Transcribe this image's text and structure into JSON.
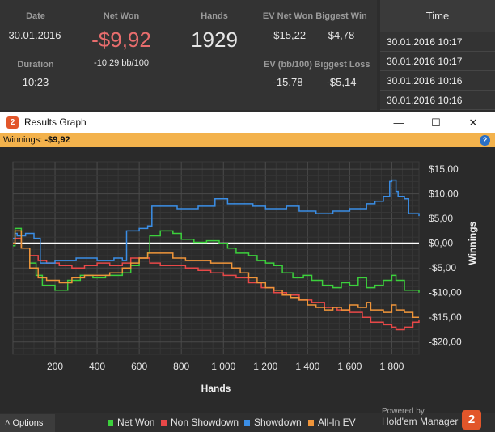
{
  "stats": {
    "date_label": "Date",
    "date_value": "30.01.2016",
    "duration_label": "Duration",
    "duration_value": "10:23",
    "netwon_label": "Net Won",
    "netwon_value": "-$9,92",
    "netwon_bb": "-10,29 bb/100",
    "hands_label": "Hands",
    "hands_value": "1929",
    "ev_net_won_label": "EV Net Won",
    "ev_net_won_value": "-$15,22",
    "biggest_win_label": "Biggest Win",
    "biggest_win_value": "$4,78",
    "ev_bb_label": "EV (bb/100)",
    "ev_bb_value": "-15,78",
    "biggest_loss_label": "Biggest Loss",
    "biggest_loss_value": "-$5,14"
  },
  "time_panel": {
    "header": "Time",
    "rows": [
      "30.01.2016 10:17",
      "30.01.2016 10:17",
      "30.01.2016 10:16",
      "30.01.2016 10:16"
    ]
  },
  "window": {
    "title": "Results Graph",
    "app_icon": "2",
    "minimize_icon": "—",
    "maximize_icon": "☐",
    "close_icon": "✕",
    "winnings_label": "Winnings:",
    "winnings_value": "-$9,92",
    "help_icon": "?"
  },
  "footer": {
    "options_label": "Options",
    "options_icon": "˄",
    "powered_by": "Powered by",
    "brand": "Hold'em Manager",
    "brand_logo": "2"
  },
  "chart_data": {
    "type": "line",
    "xlabel": "Hands",
    "ylabel": "Winnings",
    "xlim": [
      0,
      1929
    ],
    "ylim": [
      -22.5,
      16.5
    ],
    "xticks": [
      200,
      400,
      600,
      800,
      1000,
      1200,
      1400,
      1600,
      1800
    ],
    "xtick_labels": [
      "200",
      "400",
      "600",
      "800",
      "1 000",
      "1 200",
      "1 400",
      "1 600",
      "1 800"
    ],
    "yticks": [
      15,
      10,
      5,
      0,
      -5,
      -10,
      -15,
      -20
    ],
    "ytick_labels": [
      "$15,00",
      "$10,00",
      "$5,00",
      "$0,00",
      "-$5,00",
      "-$10,00",
      "-$15,00",
      "-$20,00"
    ],
    "grid": true,
    "legend_position": "bottom",
    "series": [
      {
        "name": "Net Won",
        "color": "#3cd03c",
        "x": [
          0,
          10,
          40,
          80,
          110,
          140,
          200,
          260,
          320,
          380,
          440,
          520,
          560,
          600,
          640,
          650,
          700,
          760,
          800,
          860,
          920,
          980,
          1020,
          1060,
          1120,
          1160,
          1200,
          1240,
          1280,
          1330,
          1380,
          1420,
          1470,
          1520,
          1560,
          1600,
          1640,
          1680,
          1720,
          1760,
          1800,
          1820,
          1860,
          1929
        ],
        "y": [
          -0.5,
          3.0,
          -1.0,
          -4.0,
          -6.5,
          -8.5,
          -9.5,
          -7.5,
          -6.5,
          -7.0,
          -6.5,
          -6.0,
          -4.5,
          -3.0,
          -2.0,
          1.5,
          2.5,
          2.0,
          0.8,
          0.2,
          0.5,
          0.0,
          -1.0,
          -2.0,
          -2.5,
          -3.5,
          -4.0,
          -4.5,
          -6.0,
          -7.0,
          -6.5,
          -7.5,
          -8.5,
          -9.0,
          -8.0,
          -8.5,
          -7.0,
          -9.0,
          -8.5,
          -7.5,
          -6.5,
          -7.5,
          -9.5,
          -10.0
        ]
      },
      {
        "name": "Non Showdown",
        "color": "#e84848",
        "x": [
          0,
          10,
          40,
          80,
          120,
          160,
          220,
          280,
          340,
          400,
          460,
          520,
          560,
          600,
          650,
          700,
          760,
          820,
          880,
          940,
          1000,
          1060,
          1120,
          1180,
          1240,
          1300,
          1360,
          1420,
          1480,
          1540,
          1600,
          1660,
          1700,
          1760,
          1800,
          1820,
          1860,
          1900,
          1929
        ],
        "y": [
          0.0,
          1.0,
          -1.0,
          -2.5,
          -3.5,
          -4.0,
          -4.5,
          -5.0,
          -4.5,
          -4.0,
          -4.5,
          -4.0,
          -3.0,
          -3.0,
          -4.0,
          -4.5,
          -4.5,
          -5.0,
          -5.5,
          -6.0,
          -6.5,
          -7.0,
          -8.0,
          -9.0,
          -10.0,
          -10.5,
          -11.5,
          -12.0,
          -13.0,
          -13.5,
          -14.0,
          -15.0,
          -16.0,
          -16.5,
          -17.0,
          -17.5,
          -17.0,
          -16.0,
          -15.5
        ]
      },
      {
        "name": "Showdown",
        "color": "#3b8ee6",
        "x": [
          0,
          10,
          20,
          60,
          100,
          130,
          200,
          300,
          400,
          480,
          520,
          540,
          560,
          600,
          640,
          660,
          700,
          780,
          880,
          960,
          1020,
          1080,
          1140,
          1200,
          1260,
          1300,
          1360,
          1400,
          1440,
          1480,
          1520,
          1560,
          1600,
          1640,
          1680,
          1720,
          1760,
          1790,
          1800,
          1820,
          1830,
          1860,
          1880,
          1900,
          1929
        ],
        "y": [
          1.0,
          2.0,
          1.5,
          2.0,
          1.0,
          -4.0,
          -3.5,
          -3.0,
          -3.5,
          -3.0,
          -3.5,
          2.5,
          2.5,
          3.0,
          3.5,
          7.5,
          7.5,
          7.0,
          7.5,
          9.0,
          8.0,
          8.0,
          7.5,
          7.0,
          7.0,
          7.5,
          6.5,
          6.5,
          6.0,
          6.0,
          6.5,
          6.5,
          7.0,
          7.0,
          8.0,
          8.5,
          9.5,
          12.5,
          12.8,
          10.5,
          9.5,
          9.0,
          6.0,
          6.0,
          5.5
        ]
      },
      {
        "name": "All-In EV",
        "color": "#f0953a",
        "x": [
          0,
          10,
          40,
          80,
          120,
          160,
          220,
          280,
          340,
          400,
          460,
          520,
          560,
          600,
          640,
          700,
          760,
          820,
          880,
          940,
          1000,
          1040,
          1080,
          1120,
          1160,
          1200,
          1240,
          1280,
          1320,
          1360,
          1400,
          1440,
          1480,
          1520,
          1560,
          1600,
          1640,
          1680,
          1700,
          1760,
          1800,
          1820,
          1860,
          1900,
          1929
        ],
        "y": [
          0.0,
          2.5,
          -1.0,
          -5.0,
          -7.0,
          -7.5,
          -8.0,
          -7.0,
          -6.5,
          -6.5,
          -6.0,
          -5.0,
          -4.0,
          -3.0,
          -2.0,
          -2.0,
          -3.0,
          -3.5,
          -3.5,
          -4.0,
          -4.0,
          -5.0,
          -6.0,
          -7.0,
          -8.0,
          -9.0,
          -9.5,
          -10.5,
          -11.0,
          -11.5,
          -12.5,
          -13.0,
          -13.5,
          -13.0,
          -13.5,
          -12.5,
          -13.0,
          -12.0,
          -13.5,
          -14.0,
          -12.5,
          -13.5,
          -14.0,
          -15.0,
          -15.0
        ]
      }
    ]
  }
}
